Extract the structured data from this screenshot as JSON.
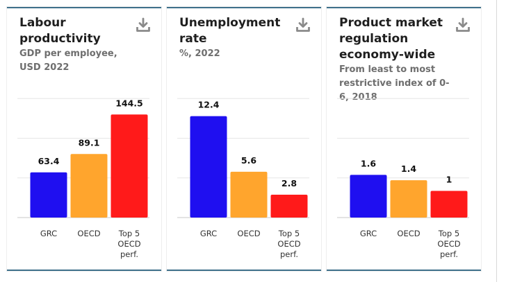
{
  "colors": {
    "grc": "#1f0ff0",
    "oecd": "#ffa52d",
    "top5": "#ff1a1a",
    "accent": "#3d6f8a"
  },
  "download_icon": "download-icon",
  "charts": [
    {
      "title": "Labour productivity",
      "subtitle": "GDP per employee, USD 2022",
      "chart_data": {
        "type": "bar",
        "title": "Labour productivity",
        "subtitle": "GDP per employee, USD 2022",
        "categories": [
          "GRC",
          "OECD",
          "Top 5 OECD perf."
        ],
        "category_lines": [
          [
            "GRC"
          ],
          [
            "OECD"
          ],
          [
            "Top 5",
            "OECD",
            "perf."
          ]
        ],
        "values": [
          63.4,
          89.1,
          144.5
        ],
        "value_labels": [
          "63.4",
          "89.1",
          "144.5"
        ],
        "ylim": [
          0,
          172
        ],
        "grid": true
      }
    },
    {
      "title": "Unemployment rate",
      "subtitle": "%, 2022",
      "chart_data": {
        "type": "bar",
        "title": "Unemployment rate",
        "subtitle": "%, 2022",
        "categories": [
          "GRC",
          "OECD",
          "Top 5 OECD perf."
        ],
        "category_lines": [
          [
            "GRC"
          ],
          [
            "OECD"
          ],
          [
            "Top 5",
            "OECD",
            "perf."
          ]
        ],
        "values": [
          12.4,
          5.6,
          2.8
        ],
        "value_labels": [
          "12.4",
          "5.6",
          "2.8"
        ],
        "ylim": [
          0,
          15
        ],
        "grid": true
      }
    },
    {
      "title": "Product market regulation economy-wide",
      "subtitle": "From least to most restrictive index of 0-6, 2018",
      "chart_data": {
        "type": "bar",
        "title": "Product market regulation economy-wide",
        "subtitle": "From least to most restrictive index of 0-6, 2018",
        "categories": [
          "GRC",
          "OECD",
          "Top 5 OECD perf."
        ],
        "category_lines": [
          [
            "GRC"
          ],
          [
            "OECD"
          ],
          [
            "Top 5",
            "OECD",
            "perf."
          ]
        ],
        "values": [
          1.6,
          1.4,
          1
        ],
        "value_labels": [
          "1.6",
          "1.4",
          "1"
        ],
        "ylim": [
          0,
          4.6
        ],
        "grid": true
      }
    }
  ]
}
